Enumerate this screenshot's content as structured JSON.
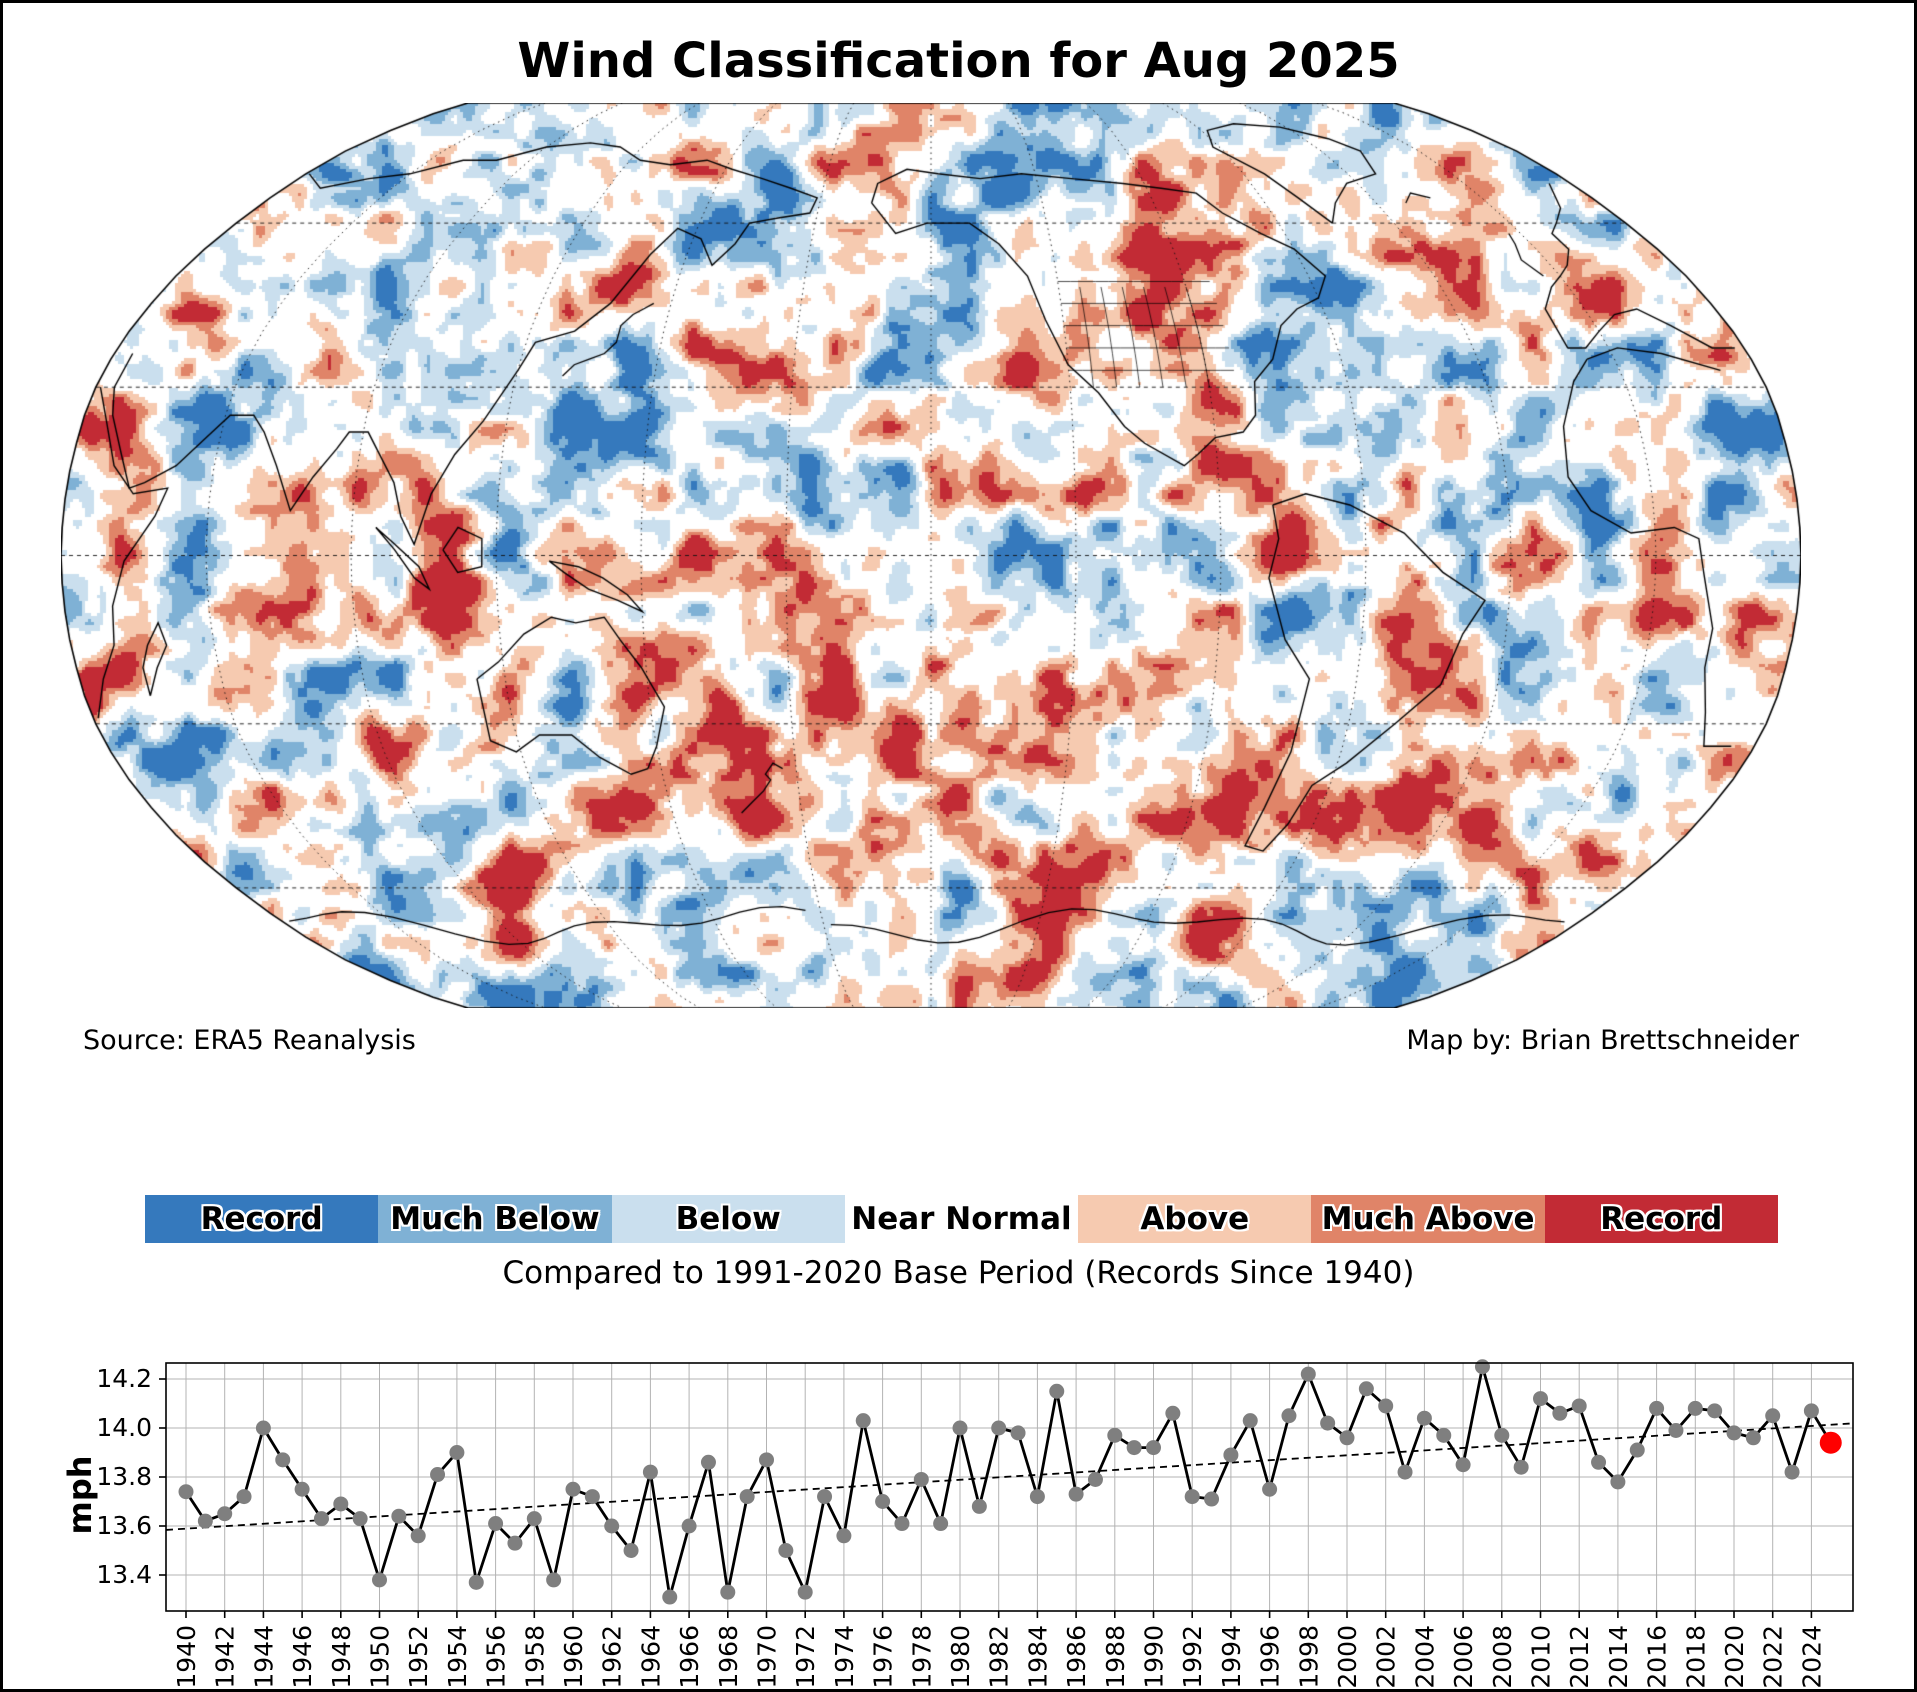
{
  "title": "Wind Classification for Aug 2025",
  "map": {
    "source_label": "Source: ERA5 Reanalysis",
    "credit_label": "Map by: Brian Brettschneider",
    "projection": "robinson-pacific-centered"
  },
  "legend": {
    "items": [
      {
        "label": "Record",
        "color": "#3579bd"
      },
      {
        "label": "Much Below",
        "color": "#7fb1d5"
      },
      {
        "label": "Below",
        "color": "#cadfee"
      },
      {
        "label": "Near Normal",
        "color": "#ffffff"
      },
      {
        "label": "Above",
        "color": "#f6cab0"
      },
      {
        "label": "Much Above",
        "color": "#e08468"
      },
      {
        "label": "Record",
        "color": "#c22b35"
      }
    ],
    "caption": "Compared to 1991-2020 Base Period   (Records Since 1940)"
  },
  "chart_data": {
    "type": "line",
    "ylabel": "mph",
    "start_year": 1940,
    "values": [
      13.74,
      13.62,
      13.65,
      13.72,
      14.0,
      13.87,
      13.75,
      13.63,
      13.69,
      13.63,
      13.38,
      13.64,
      13.56,
      13.81,
      13.9,
      13.37,
      13.61,
      13.53,
      13.63,
      13.38,
      13.75,
      13.72,
      13.6,
      13.5,
      13.82,
      13.31,
      13.6,
      13.86,
      13.33,
      13.72,
      13.87,
      13.5,
      13.33,
      13.72,
      13.56,
      14.03,
      13.7,
      13.61,
      13.79,
      13.61,
      14.0,
      13.68,
      14.0,
      13.98,
      13.72,
      14.15,
      13.73,
      13.79,
      13.97,
      13.92,
      13.92,
      14.06,
      13.72,
      13.71,
      13.89,
      14.03,
      13.75,
      14.05,
      14.22,
      14.02,
      13.96,
      14.16,
      14.09,
      13.82,
      14.04,
      13.97,
      13.85,
      14.25,
      13.97,
      13.84,
      14.12,
      14.06,
      14.09,
      13.86,
      13.78,
      13.91,
      14.08,
      13.99,
      14.08,
      14.07,
      13.98,
      13.96,
      14.05,
      13.82,
      14.07,
      13.94
    ],
    "highlight_year": 2025,
    "highlight_color": "#ff0000",
    "line_color": "#000000",
    "marker_color": "#7f7f7f",
    "trend": {
      "start_year": 1940,
      "start_value": 13.589,
      "end_year": 2025,
      "end_value": 14.014
    },
    "ylim": [
      13.25,
      14.27
    ],
    "ytick_labels": [
      "13.4",
      "13.6",
      "13.8",
      "14.0",
      "14.2"
    ],
    "yticks": [
      13.4,
      13.6,
      13.8,
      14.0,
      14.2
    ],
    "xtick_labels": [
      "1940",
      "1942",
      "1944",
      "1946",
      "1948",
      "1950",
      "1952",
      "1954",
      "1956",
      "1958",
      "1960",
      "1962",
      "1964",
      "1966",
      "1968",
      "1970",
      "1972",
      "1974",
      "1976",
      "1978",
      "1980",
      "1982",
      "1984",
      "1986",
      "1988",
      "1990",
      "1992",
      "1994",
      "1996",
      "1998",
      "2000",
      "2002",
      "2004",
      "2006",
      "2008",
      "2010",
      "2012",
      "2014",
      "2016",
      "2018",
      "2020",
      "2022",
      "2024"
    ],
    "grid": true,
    "legend_position": "none"
  }
}
